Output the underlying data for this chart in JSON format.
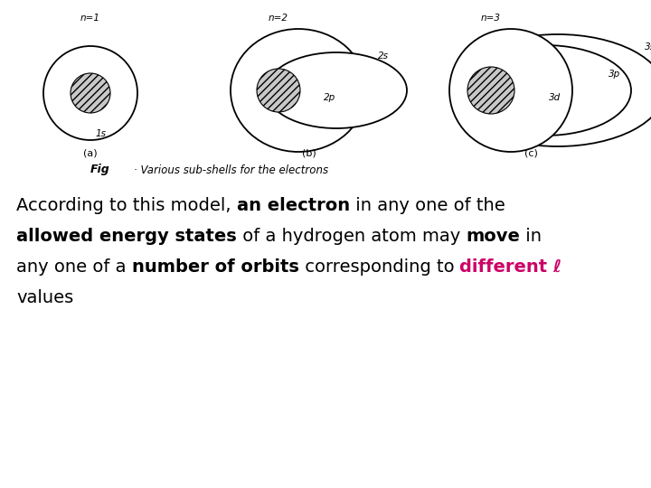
{
  "background_color": "#ffffff",
  "highlight_color": "#cc0066",
  "diagram_a_label": "n=1",
  "diagram_b_label": "n=2",
  "diagram_c_label": "n=3",
  "sub_a": "(a)",
  "sub_b": "(b)",
  "sub_c": "(c)",
  "fig_label": "Fig",
  "fig_caption": "Various sub-shells for the electrons",
  "font_size_diagram": 7.5,
  "font_size_caption": 8.5,
  "font_size_body": 14
}
